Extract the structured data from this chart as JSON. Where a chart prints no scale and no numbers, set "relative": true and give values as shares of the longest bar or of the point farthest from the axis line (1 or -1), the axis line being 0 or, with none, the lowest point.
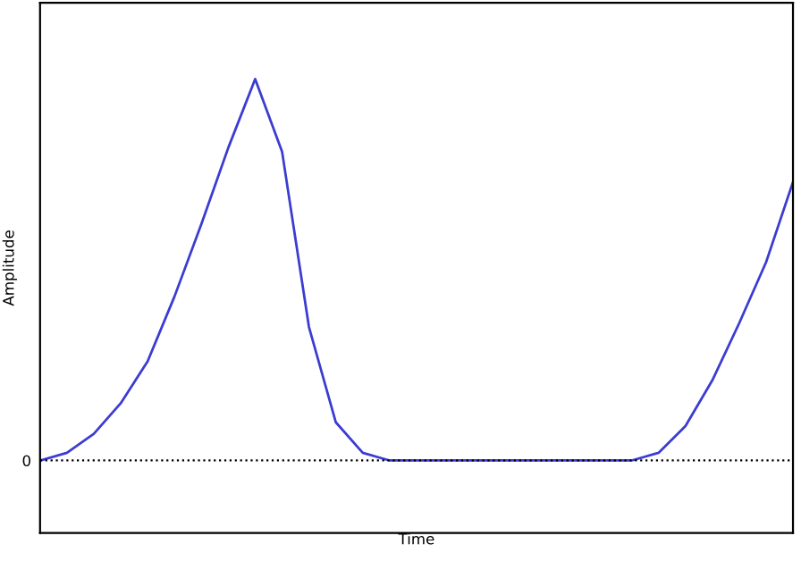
{
  "chart_data": {
    "type": "line",
    "xlabel": "Time",
    "ylabel": "Amplitude",
    "relative": true,
    "categories": [
      null,
      null,
      null,
      null,
      null,
      null,
      null,
      null,
      null,
      null,
      null,
      null,
      null,
      null,
      null,
      null,
      null,
      null,
      null,
      null,
      null,
      null,
      null,
      null,
      null,
      null,
      null,
      null,
      null
    ],
    "series": [
      {
        "color": "#3c3cd2",
        "values": [
          0,
          0.02,
          0.07,
          0.15,
          0.26,
          0.43,
          0.62,
          0.82,
          1.0,
          0.81,
          0.35,
          0.1,
          0.02,
          0,
          0,
          0,
          0,
          0,
          0,
          0,
          0,
          0,
          0,
          0.02,
          0.09,
          0.21,
          0.36,
          0.52,
          0.73
        ]
      }
    ],
    "ref_lines": [
      {
        "axis": "y",
        "value": 0,
        "label": "0",
        "color": "#000000",
        "line_style": "dotted"
      }
    ],
    "marker": "none",
    "line_style": "solid",
    "grid": false,
    "legend": false
  }
}
